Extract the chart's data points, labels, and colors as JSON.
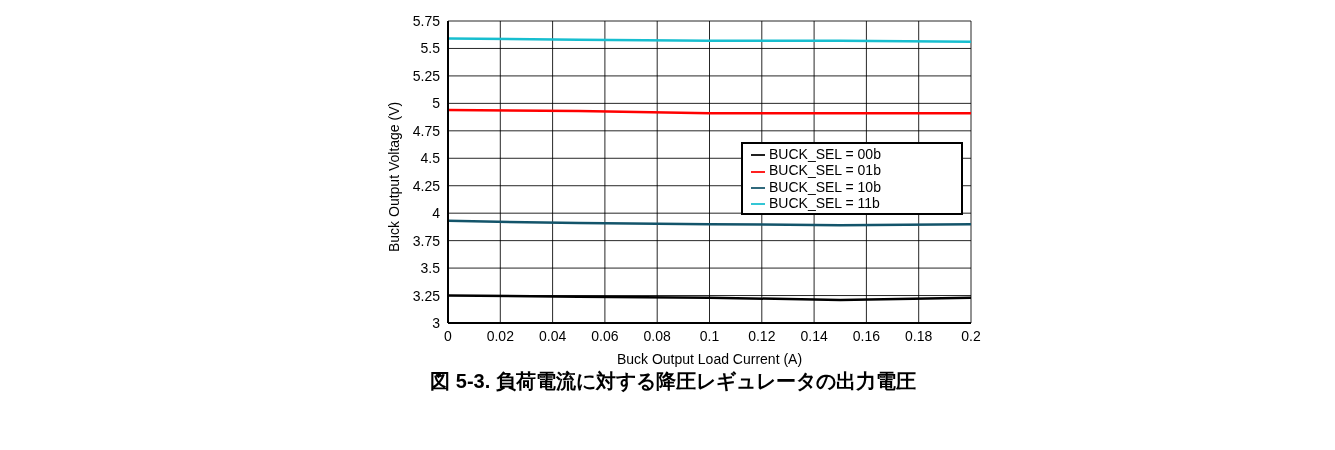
{
  "chart_data": {
    "type": "line",
    "title": "図 5-3. 負荷電流に対する降圧レギュレータの出力電圧",
    "xlabel": "Buck Output Load Current (A)",
    "ylabel": "Buck Output Voltage (V)",
    "x": [
      0,
      0.05,
      0.1,
      0.15,
      0.2
    ],
    "series": [
      {
        "name": "BUCK_SEL = 00b",
        "color": "#000000",
        "values": [
          3.25,
          3.24,
          3.23,
          3.21,
          3.23
        ]
      },
      {
        "name": "BUCK_SEL = 01b",
        "color": "#ff0000",
        "values": [
          4.94,
          4.93,
          4.91,
          4.91,
          4.91
        ]
      },
      {
        "name": "BUCK_SEL = 10b",
        "color": "#13546a",
        "values": [
          3.93,
          3.91,
          3.9,
          3.89,
          3.9
        ]
      },
      {
        "name": "BUCK_SEL = 11b",
        "color": "#17becf",
        "values": [
          5.59,
          5.58,
          5.57,
          5.57,
          5.56
        ]
      }
    ],
    "xlim": [
      0,
      0.2
    ],
    "xticks": [
      0,
      0.02,
      0.04,
      0.06,
      0.08,
      0.1,
      0.12,
      0.14,
      0.16,
      0.18,
      0.2
    ],
    "ylim": [
      3,
      5.75
    ],
    "yticks": [
      3,
      3.25,
      3.5,
      3.75,
      4,
      4.25,
      4.5,
      4.75,
      5,
      5.25,
      5.5,
      5.75
    ],
    "grid": true,
    "legend": "right",
    "marker": "none",
    "line_style": "solid"
  }
}
